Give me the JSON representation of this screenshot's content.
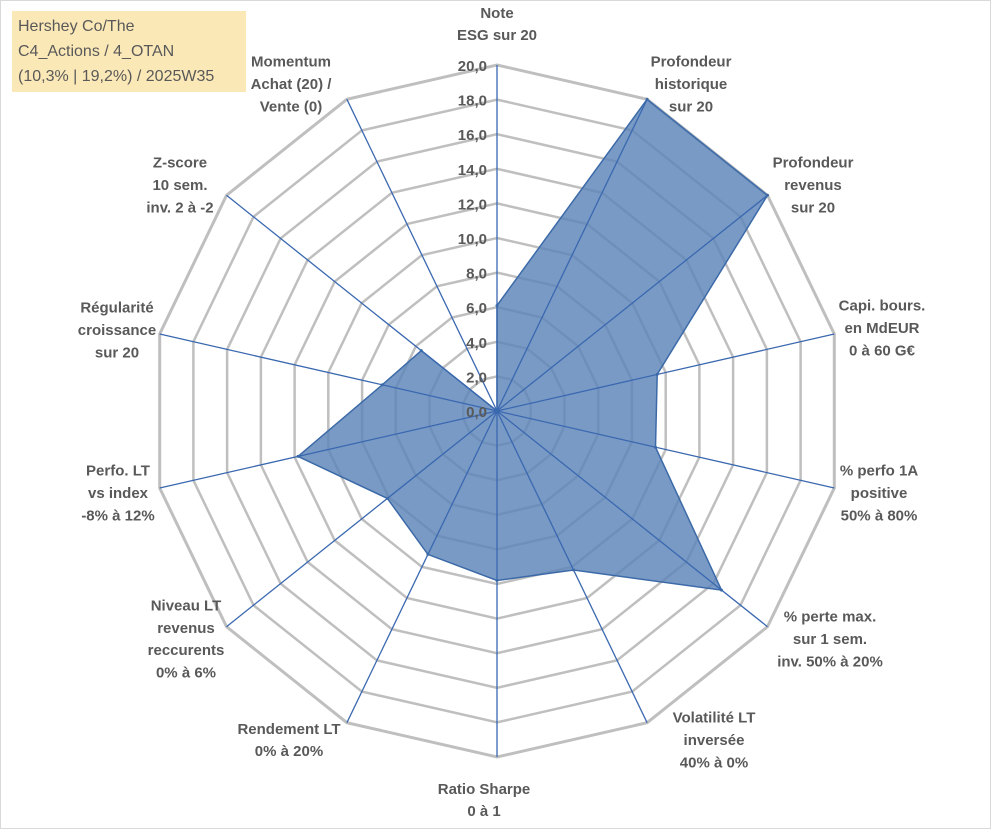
{
  "title": {
    "line1": "Hershey Co/The",
    "line2": "C4_Actions / 4_OTAN",
    "line3": "(10,3% | 19,2%) / 2025W35"
  },
  "chart_data": {
    "type": "radar",
    "rmin": 0,
    "rmax": 20,
    "tick_step": 2,
    "tick_labels": [
      "0,0",
      "2,0",
      "4,0",
      "6,0",
      "8,0",
      "10,0",
      "12,0",
      "14,0",
      "16,0",
      "18,0",
      "20,0"
    ],
    "grid": true,
    "colors": {
      "fill": "#5b84b8",
      "fill_opacity": 0.82,
      "stroke": "#3c6aa8",
      "spoke": "#3a68b0",
      "grid": "#bfbfbf"
    },
    "categories": [
      [
        "Note",
        "ESG sur 20"
      ],
      [
        "Profondeur",
        "historique",
        "sur 20"
      ],
      [
        "Profondeur",
        "revenus",
        "sur 20"
      ],
      [
        "Capi. bours.",
        "en MdEUR",
        "0 à 60 G€"
      ],
      [
        "% perfo 1A",
        "positive",
        "50% à 80%"
      ],
      [
        "% perte max.",
        "sur 1 sem.",
        "inv. 50% à 20%"
      ],
      [
        "Volatilité LT",
        "inversée",
        "40% à 0%"
      ],
      [
        "Ratio Sharpe",
        "0 à 1"
      ],
      [
        "Rendement LT",
        "0% à 20%"
      ],
      [
        "Niveau LT",
        "revenus",
        "reccurents",
        "0% à 6%"
      ],
      [
        "Perfo. LT",
        "vs index",
        "-8% à 12%"
      ],
      [
        "Régularité",
        "croissance",
        "sur 20"
      ],
      [
        "Z-score",
        "10 sem.",
        "inv. 2 à -2"
      ],
      [
        "Momentum",
        "Achat (20) /",
        "Vente (0)"
      ]
    ],
    "series": [
      {
        "values": [
          6.1,
          20.0,
          20.0,
          9.5,
          9.4,
          16.6,
          10.2,
          9.8,
          9.2,
          8.1,
          11.8,
          6.8,
          5.6,
          0.0
        ]
      }
    ]
  }
}
